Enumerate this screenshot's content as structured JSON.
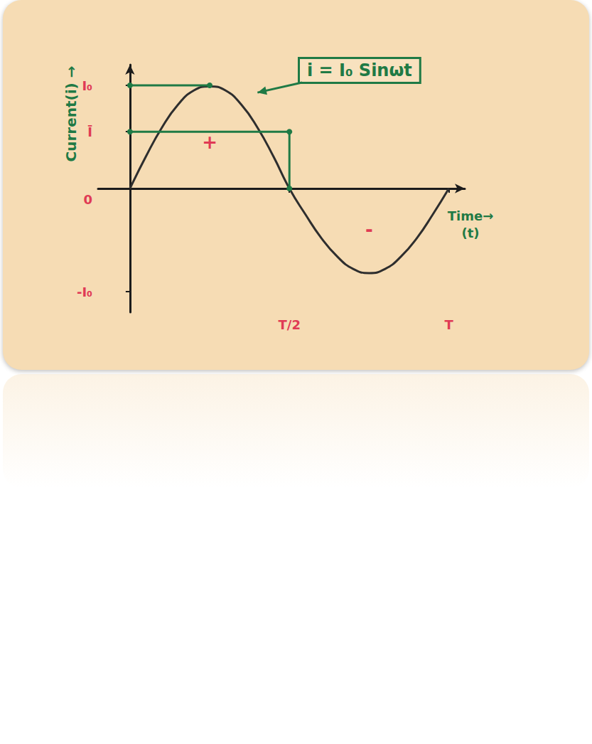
{
  "chart_data": {
    "type": "line",
    "xlabel": "Time→\n(t)",
    "ylabel": "Current(i) →",
    "xlim": [
      -0.1,
      1.05
    ],
    "ylim": [
      -1.2,
      1.2
    ],
    "xticks": [
      {
        "value": 0.5,
        "label": "T/2"
      },
      {
        "value": 1,
        "label": "T"
      }
    ],
    "yticks": [
      {
        "value": -1,
        "label": "-I₀"
      },
      0,
      {
        "value": 0.55,
        "label": "Ī"
      },
      {
        "value": 1,
        "label": "I₀"
      }
    ],
    "grid": false,
    "annotations": [
      "i = I₀ Sinωt",
      "+",
      "-"
    ],
    "series": [
      {
        "color": "#2e2e2e",
        "marker": "none",
        "line_style": "smooth",
        "x": [
          0,
          0.05,
          0.1,
          0.15,
          0.2,
          0.25,
          0.3,
          0.35,
          0.4,
          0.45,
          0.5,
          0.55,
          0.6,
          0.65,
          0.7,
          0.75,
          0.8,
          0.85,
          0.9,
          0.95,
          1
        ],
        "values": [
          0,
          0.31,
          0.59,
          0.81,
          0.95,
          0.99,
          0.95,
          0.81,
          0.59,
          0.31,
          0,
          -0.25,
          -0.48,
          -0.66,
          -0.78,
          -0.82,
          -0.78,
          -0.66,
          -0.48,
          -0.25,
          0
        ]
      },
      {
        "color": "#1f7a45",
        "marker": "circle",
        "line_style": "solid",
        "x": [
          0,
          0.25
        ],
        "values": [
          1,
          1
        ]
      },
      {
        "color": "#1f7a45",
        "marker": "circle",
        "line_style": "solid",
        "x": [
          0,
          0.5,
          0.5
        ],
        "values": [
          0.55,
          0.55,
          0
        ]
      }
    ]
  }
}
